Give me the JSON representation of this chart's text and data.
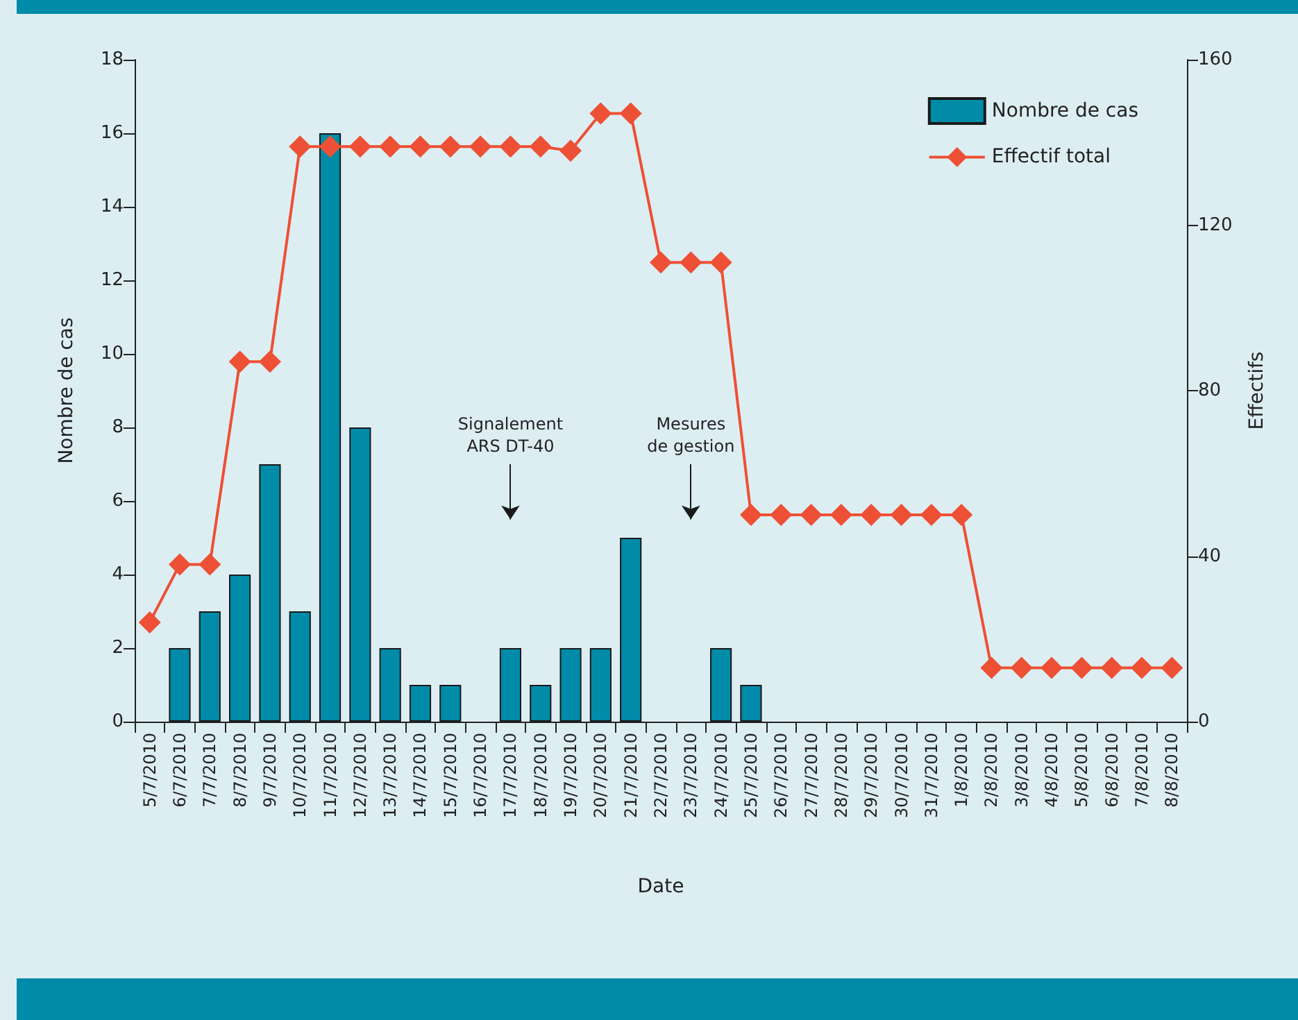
{
  "chart_data": {
    "type": "bar",
    "xlabel": "Date",
    "ylabel": "Nombre de cas",
    "y2label": "Effectifs",
    "categories": [
      "5/7/2010",
      "6/7/2010",
      "7/7/2010",
      "8/7/2010",
      "9/7/2010",
      "10/7/2010",
      "11/7/2010",
      "12/7/2010",
      "13/7/2010",
      "14/7/2010",
      "15/7/2010",
      "16/7/2010",
      "17/7/2010",
      "18/7/2010",
      "19/7/2010",
      "20/7/2010",
      "21/7/2010",
      "22/7/2010",
      "23/7/2010",
      "24/7/2010",
      "25/7/2010",
      "26/7/2010",
      "27/7/2010",
      "28/7/2010",
      "29/7/2010",
      "30/7/2010",
      "31/7/2010",
      "1/8/2010",
      "2/8/2010",
      "3/8/2010",
      "4/8/2010",
      "5/8/2010",
      "6/8/2010",
      "7/8/2010",
      "8/8/2010"
    ],
    "series": [
      {
        "name": "Nombre de cas",
        "color": "#008ba8",
        "values": [
          0,
          2,
          3,
          4,
          7,
          3,
          16,
          8,
          2,
          1,
          1,
          0,
          2,
          1,
          2,
          2,
          5,
          0,
          0,
          2,
          1,
          0,
          0,
          0,
          0,
          0,
          0,
          0,
          0,
          0,
          0,
          0,
          0,
          0,
          0
        ]
      },
      {
        "name": "Effectif total",
        "type": "line",
        "axis": "y2",
        "color": "#ee5035",
        "marker": "diamond",
        "values": [
          24,
          38,
          38,
          87,
          87,
          139,
          139,
          139,
          139,
          139,
          139,
          139,
          139,
          139,
          138,
          147,
          147,
          111,
          111,
          111,
          50,
          50,
          50,
          50,
          50,
          50,
          50,
          50,
          13,
          13,
          13,
          13,
          13,
          13,
          13
        ]
      }
    ],
    "ylim": [
      0,
      18
    ],
    "yticks": [
      0,
      2,
      4,
      6,
      8,
      10,
      12,
      14,
      16,
      18
    ],
    "y2lim": [
      0,
      160
    ],
    "y2ticks": [
      0,
      40,
      80,
      120,
      160
    ],
    "annotations": [
      "Signalement\nARS DT-40",
      "Mesures\nde gestion"
    ],
    "legend": "top right",
    "grid": false
  }
}
